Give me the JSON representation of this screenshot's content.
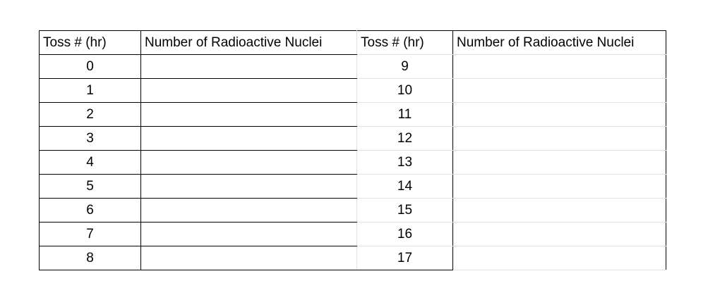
{
  "table": {
    "headers": [
      "Toss # (hr)",
      "Number of Radioactive Nuclei",
      "Toss # (hr)",
      "Number of Radioactive Nuclei"
    ],
    "rows": [
      {
        "toss_left": "0",
        "nuclei_left": "",
        "toss_right": "9",
        "nuclei_right": ""
      },
      {
        "toss_left": "1",
        "nuclei_left": "",
        "toss_right": "10",
        "nuclei_right": ""
      },
      {
        "toss_left": "2",
        "nuclei_left": "",
        "toss_right": "11",
        "nuclei_right": ""
      },
      {
        "toss_left": "3",
        "nuclei_left": "",
        "toss_right": "12",
        "nuclei_right": ""
      },
      {
        "toss_left": "4",
        "nuclei_left": "",
        "toss_right": "13",
        "nuclei_right": ""
      },
      {
        "toss_left": "5",
        "nuclei_left": "",
        "toss_right": "14",
        "nuclei_right": ""
      },
      {
        "toss_left": "6",
        "nuclei_left": "",
        "toss_right": "15",
        "nuclei_right": ""
      },
      {
        "toss_left": "7",
        "nuclei_left": "",
        "toss_right": "16",
        "nuclei_right": ""
      },
      {
        "toss_left": "8",
        "nuclei_left": "",
        "toss_right": "17",
        "nuclei_right": ""
      }
    ]
  }
}
